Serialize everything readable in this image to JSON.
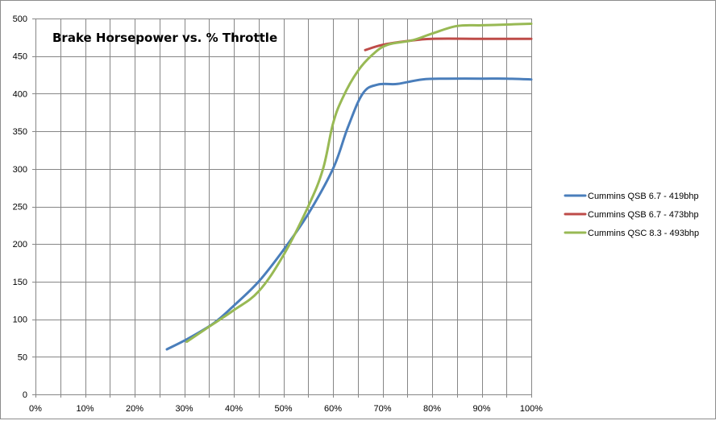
{
  "chart_data": {
    "type": "line",
    "title": "Brake Horsepower vs. % Throttle",
    "xlabel": "",
    "ylabel": "",
    "xlim": [
      0,
      100
    ],
    "ylim": [
      0,
      500
    ],
    "x_ticks": [
      "0%",
      "10%",
      "20%",
      "30%",
      "40%",
      "50%",
      "60%",
      "70%",
      "80%",
      "90%",
      "100%"
    ],
    "y_ticks": [
      "0",
      "50",
      "100",
      "150",
      "200",
      "250",
      "300",
      "350",
      "400",
      "450",
      "500"
    ],
    "grid": true,
    "legend_position": "right",
    "series": [
      {
        "name": "Cummins QSB 6.7 - 419bhp",
        "color": "#4a7ebb",
        "points": [
          [
            26.5,
            60
          ],
          [
            31,
            75
          ],
          [
            36,
            95
          ],
          [
            40,
            118
          ],
          [
            45,
            150
          ],
          [
            50,
            192
          ],
          [
            55,
            240
          ],
          [
            60,
            300
          ],
          [
            63,
            355
          ],
          [
            66,
            400
          ],
          [
            69,
            412
          ],
          [
            73,
            413
          ],
          [
            78,
            419
          ],
          [
            83,
            420
          ],
          [
            90,
            420
          ],
          [
            95,
            420
          ],
          [
            100,
            419
          ]
        ]
      },
      {
        "name": "Cummins QSB 6.7 - 473bhp",
        "color": "#be4b48",
        "points": [
          [
            66.5,
            458
          ],
          [
            70,
            465
          ],
          [
            75,
            470
          ],
          [
            80,
            473
          ],
          [
            90,
            473
          ],
          [
            100,
            473
          ]
        ]
      },
      {
        "name": "Cummins QSC 8.3 - 493bhp",
        "color": "#98b954",
        "points": [
          [
            30.5,
            70
          ],
          [
            35,
            90
          ],
          [
            40,
            112
          ],
          [
            45,
            137
          ],
          [
            50,
            185
          ],
          [
            55,
            250
          ],
          [
            58,
            300
          ],
          [
            60,
            360
          ],
          [
            62,
            395
          ],
          [
            65,
            430
          ],
          [
            68,
            452
          ],
          [
            71,
            465
          ],
          [
            76,
            471
          ],
          [
            80,
            480
          ],
          [
            85,
            490
          ],
          [
            90,
            491
          ],
          [
            95,
            492
          ],
          [
            100,
            493
          ]
        ]
      }
    ]
  }
}
